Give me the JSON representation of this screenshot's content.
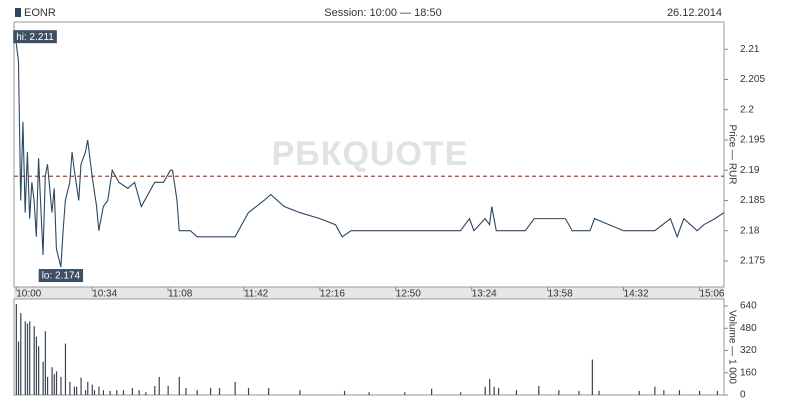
{
  "header": {
    "symbol": "EONR",
    "session": "Session: 10:00 — 18:50",
    "date": "26.12.2014"
  },
  "chart_data": [
    {
      "type": "line",
      "x": [
        "10:00",
        "10:01",
        "10:02",
        "10:03",
        "10:04",
        "10:05",
        "10:06",
        "10:07",
        "10:08",
        "10:09",
        "10:10",
        "10:12",
        "10:13",
        "10:14",
        "10:16",
        "10:17",
        "10:18",
        "10:20",
        "10:21",
        "10:22",
        "10:24",
        "10:25",
        "10:26",
        "10:28",
        "10:29",
        "10:31",
        "10:32",
        "10:34",
        "10:36",
        "10:37",
        "10:39",
        "10:41",
        "10:43",
        "10:46",
        "10:50",
        "10:53",
        "10:56",
        "10:59",
        "11:02",
        "11:06",
        "11:09",
        "11:10",
        "11:12",
        "11:13",
        "11:18",
        "11:21",
        "11:38",
        "11:44",
        "11:51",
        "11:54",
        "12:00",
        "12:07",
        "12:16",
        "12:23",
        "12:26",
        "12:30",
        "12:34",
        "13:19",
        "13:23",
        "13:25",
        "13:30",
        "13:32",
        "13:33",
        "13:35",
        "13:48",
        "13:52",
        "14:06",
        "14:09",
        "14:17",
        "14:19",
        "14:32",
        "14:46",
        "14:53",
        "14:56",
        "14:59",
        "15:05",
        "15:08",
        "15:13",
        "15:17"
      ],
      "values": [
        2.211,
        2.208,
        2.185,
        2.198,
        2.183,
        2.193,
        2.182,
        2.188,
        2.185,
        2.179,
        2.192,
        2.176,
        2.189,
        2.191,
        2.183,
        2.187,
        2.177,
        2.174,
        2.18,
        2.185,
        2.188,
        2.193,
        2.19,
        2.185,
        2.191,
        2.193,
        2.195,
        2.189,
        2.184,
        2.18,
        2.184,
        2.185,
        2.19,
        2.188,
        2.187,
        2.188,
        2.184,
        2.186,
        2.188,
        2.188,
        2.19,
        2.19,
        2.185,
        2.18,
        2.18,
        2.179,
        2.179,
        2.183,
        2.185,
        2.186,
        2.184,
        2.183,
        2.182,
        2.181,
        2.179,
        2.18,
        2.18,
        2.18,
        2.182,
        2.18,
        2.182,
        2.181,
        2.184,
        2.18,
        2.18,
        2.182,
        2.182,
        2.18,
        2.18,
        2.182,
        2.18,
        2.18,
        2.182,
        2.179,
        2.182,
        2.18,
        2.181,
        2.182,
        2.183
      ],
      "color": "#2b4763",
      "xlim": [
        "9:59",
        "15:17"
      ],
      "xticks": [
        "10:00",
        "10:34",
        "11:08",
        "11:42",
        "12:16",
        "12:50",
        "13:24",
        "13:58",
        "14:32",
        "15:06"
      ],
      "ylim": [
        2.1707,
        2.2145
      ],
      "yticks": [
        2.175,
        2.18,
        2.185,
        2.19,
        2.195,
        2.2,
        2.205,
        2.21
      ],
      "y_label": "Price — RUR",
      "reference_line": 2.189,
      "reference_color": "#c0392b",
      "annotations": [
        {
          "text": "hi: 2.211",
          "x": "10:00",
          "y": 2.211
        },
        {
          "text": "lo: 2.174",
          "x": "10:20",
          "y": 2.174
        }
      ],
      "watermark": "РБКQUOTE"
    },
    {
      "type": "bar",
      "x": [
        "10:00",
        "10:01",
        "10:02",
        "10:04",
        "10:05",
        "10:06",
        "10:08",
        "10:09",
        "10:10",
        "10:12",
        "10:13",
        "10:14",
        "10:16",
        "10:17",
        "10:18",
        "10:20",
        "10:22",
        "10:24",
        "10:26",
        "10:27",
        "10:29",
        "10:31",
        "10:32",
        "10:34",
        "10:35",
        "10:37",
        "10:39",
        "10:42",
        "10:45",
        "10:48",
        "10:52",
        "10:55",
        "10:58",
        "11:02",
        "11:04",
        "11:08",
        "11:13",
        "11:16",
        "11:21",
        "11:27",
        "11:31",
        "11:38",
        "11:44",
        "11:53",
        "12:07",
        "12:27",
        "12:38",
        "12:54",
        "13:06",
        "13:19",
        "13:30",
        "13:32",
        "13:34",
        "13:36",
        "13:44",
        "13:54",
        "14:03",
        "14:12",
        "14:18",
        "14:21",
        "14:39",
        "14:46",
        "14:50",
        "14:57",
        "15:06",
        "15:14"
      ],
      "values": [
        655,
        385,
        590,
        530,
        515,
        530,
        495,
        420,
        350,
        240,
        460,
        130,
        200,
        150,
        170,
        130,
        370,
        95,
        60,
        60,
        125,
        35,
        95,
        75,
        35,
        60,
        35,
        30,
        35,
        35,
        50,
        35,
        20,
        65,
        130,
        65,
        130,
        50,
        35,
        50,
        50,
        95,
        50,
        50,
        35,
        30,
        20,
        20,
        45,
        20,
        60,
        115,
        60,
        50,
        35,
        65,
        35,
        30,
        255,
        30,
        30,
        60,
        35,
        35,
        30,
        30
      ],
      "color": "#3a4452",
      "xlim": [
        "9:59",
        "15:17"
      ],
      "ylim": [
        0,
        691
      ],
      "yticks": [
        0,
        160,
        320,
        480,
        640
      ],
      "y_label": "Volume — 1 000"
    }
  ]
}
